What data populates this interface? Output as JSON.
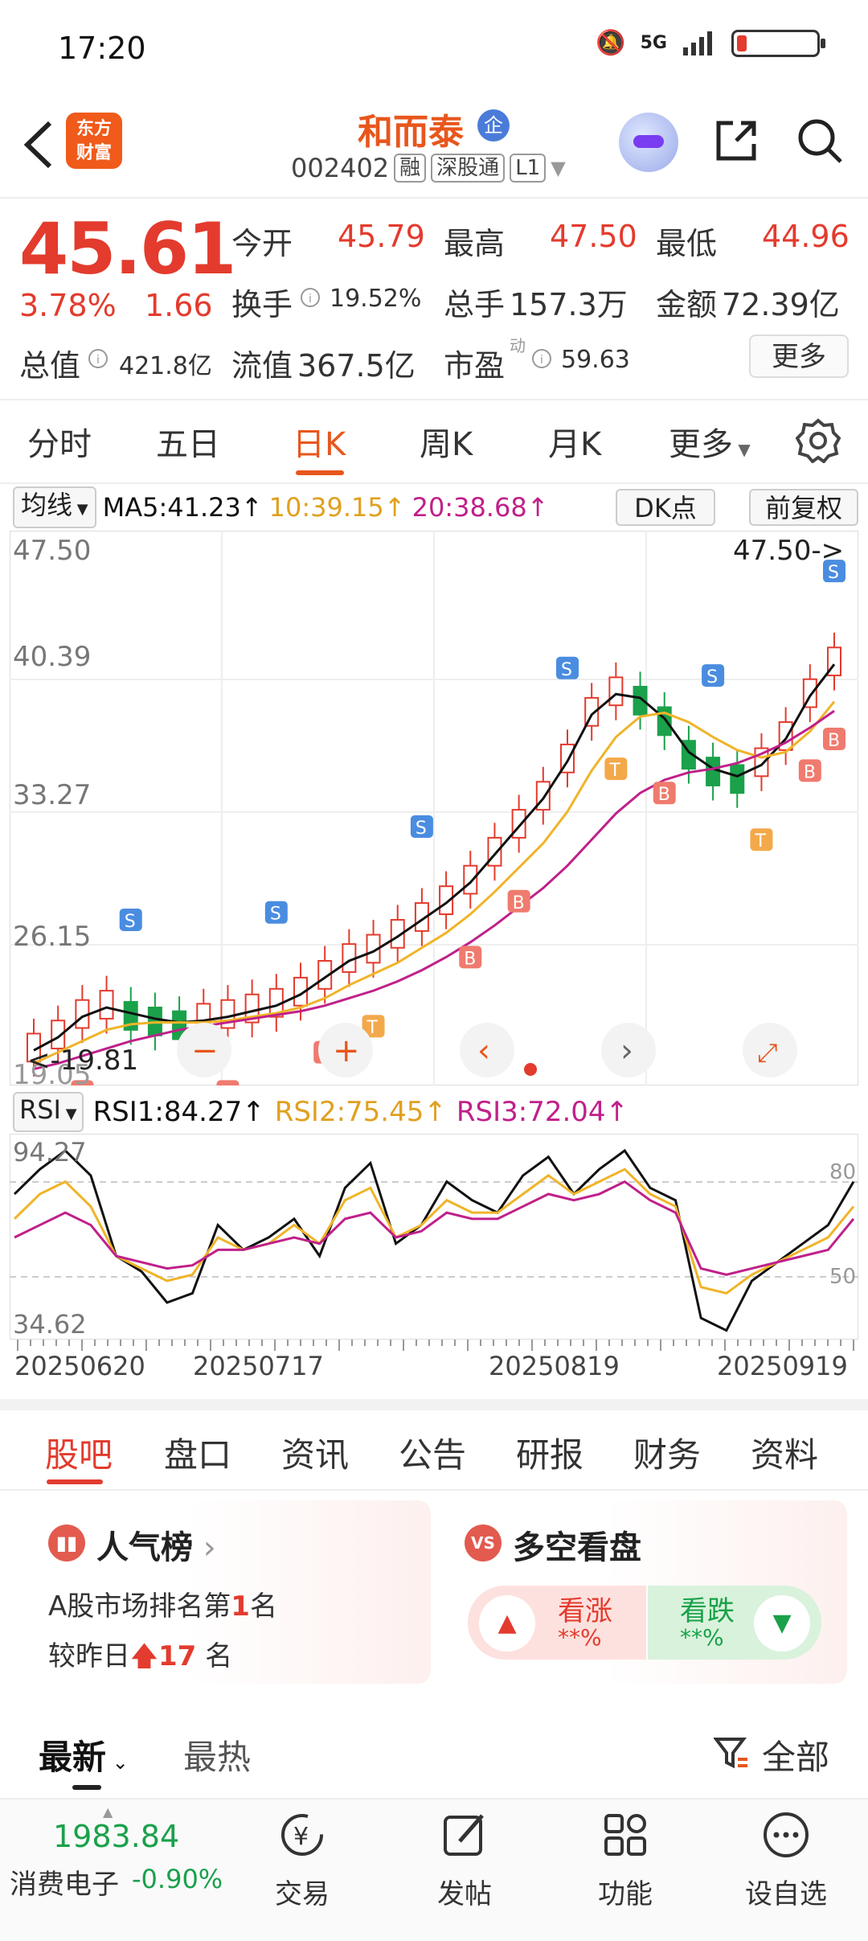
{
  "status_bar": {
    "time": "17:20",
    "network": "5G"
  },
  "header": {
    "logo_line1": "东方",
    "logo_line2": "财富",
    "stock_name": "和而泰",
    "badge": "企",
    "stock_code": "002402",
    "tags": [
      "融",
      "深股通",
      "L1"
    ]
  },
  "quote": {
    "price": "45.61",
    "change_pct": "3.78%",
    "change": "1.66",
    "open_label": "今开",
    "open": "45.79",
    "high_label": "最高",
    "high": "47.50",
    "low_label": "最低",
    "low": "44.96",
    "turnover_label": "换手",
    "turnover": "19.52%",
    "volume_label": "总手",
    "volume": "157.3万",
    "amount_label": "金额",
    "amount": "72.39亿",
    "mcap_label": "总值",
    "mcap": "421.8亿",
    "float_label": "流值",
    "float_cap": "367.5亿",
    "pe_label": "市盈",
    "pe_sup": "动",
    "pe": "59.63",
    "more_label": "更多"
  },
  "chart_tabs": [
    "分时",
    "五日",
    "日K",
    "周K",
    "月K",
    "更多"
  ],
  "ma_bar": {
    "select": "均线",
    "ma5": "MA5:41.23↑",
    "ma10": "10:39.15↑",
    "ma20": "20:38.68↑",
    "dk": "DK点",
    "fuquan": "前复权"
  },
  "colors": {
    "up": "#e33b2e",
    "down": "#1aa14a",
    "ma5": "#111111",
    "ma10": "#f0b429",
    "ma20": "#c0208a"
  },
  "kline": {
    "axis_labels": [
      "47.50",
      "40.39",
      "33.27",
      "26.15",
      "19.05"
    ],
    "high_mark": "47.50->",
    "low_mark": "<-19.81"
  },
  "rsi_bar": {
    "select": "RSI",
    "rsi1": "RSI1:84.27↑",
    "rsi2": "RSI2:75.45↑",
    "rsi3": "RSI3:72.04↑",
    "axis_top": "94.27",
    "axis_bottom": "34.62",
    "level_80": "80",
    "level_50": "50"
  },
  "chart_data": {
    "type": "line",
    "title": "",
    "series": [
      {
        "name": "MA5",
        "values": [
          20.5,
          21.2,
          22.3,
          22.8,
          22.5,
          22.2,
          22.0,
          22.1,
          22.3,
          22.6,
          22.9,
          23.5,
          24.4,
          25.3,
          25.8,
          26.6,
          27.5,
          28.4,
          29.5,
          31.0,
          32.5,
          34.0,
          36.0,
          38.5,
          39.6,
          39.4,
          38.3,
          36.5,
          35.6,
          35.2,
          35.8,
          37.2,
          39.5,
          41.2
        ]
      },
      {
        "name": "MA10",
        "values": [
          19.8,
          20.4,
          21.0,
          21.6,
          21.9,
          22.0,
          22.0,
          22.0,
          22.1,
          22.3,
          22.5,
          22.8,
          23.3,
          24.0,
          24.6,
          25.2,
          26.0,
          26.8,
          27.8,
          29.0,
          30.3,
          31.6,
          33.3,
          35.5,
          37.3,
          38.4,
          38.6,
          38.1,
          37.3,
          36.6,
          36.2,
          36.5,
          37.6,
          39.2
        ]
      },
      {
        "name": "MA20",
        "values": [
          19.5,
          19.8,
          20.2,
          20.6,
          21.0,
          21.3,
          21.6,
          21.8,
          22.0,
          22.2,
          22.4,
          22.6,
          22.9,
          23.3,
          23.7,
          24.2,
          24.8,
          25.5,
          26.3,
          27.2,
          28.2,
          29.2,
          30.4,
          31.8,
          33.2,
          34.3,
          35.0,
          35.4,
          35.6,
          35.9,
          36.4,
          37.0,
          37.8,
          38.7
        ]
      }
    ]
  },
  "rsi_data": {
    "rsi1": [
      80,
      88,
      94,
      86,
      60,
      55,
      45,
      48,
      70,
      62,
      66,
      72,
      60,
      82,
      90,
      64,
      70,
      84,
      78,
      74,
      86,
      92,
      80,
      88,
      94,
      82,
      78,
      40,
      36,
      52,
      58,
      64,
      70,
      84
    ],
    "rsi2": [
      72,
      80,
      84,
      76,
      60,
      56,
      52,
      54,
      66,
      62,
      64,
      70,
      64,
      78,
      82,
      66,
      70,
      78,
      74,
      74,
      80,
      86,
      80,
      84,
      88,
      80,
      76,
      50,
      48,
      54,
      58,
      62,
      66,
      76
    ],
    "rsi3": [
      66,
      70,
      74,
      70,
      60,
      58,
      56,
      57,
      62,
      62,
      64,
      66,
      64,
      72,
      74,
      66,
      68,
      74,
      72,
      72,
      76,
      80,
      78,
      80,
      84,
      78,
      74,
      56,
      54,
      56,
      58,
      60,
      62,
      72
    ]
  },
  "dates": [
    "20250620",
    "20250717",
    "20250819",
    "20250919"
  ],
  "section_tabs": [
    "股吧",
    "盘口",
    "资讯",
    "公告",
    "研报",
    "财务",
    "资料"
  ],
  "popularity": {
    "title": "人气榜",
    "line1_prefix": "A股市场排名第",
    "rank": "1",
    "line1_suffix": "名",
    "line2_prefix": "较昨日",
    "change": "17",
    "line2_suffix": "名"
  },
  "sentiment": {
    "title": "多空看盘",
    "badge": "VS",
    "up_label": "看涨",
    "up_value": "**%",
    "down_label": "看跌",
    "down_value": "**%"
  },
  "feed_tabs": {
    "latest": "最新",
    "hot": "最热",
    "filter": "全部"
  },
  "bottom_bar": {
    "index_value": "1983.84",
    "index_name": "消费电子",
    "index_pct": "-0.90%",
    "nav": [
      "交易",
      "发帖",
      "功能",
      "设自选"
    ]
  }
}
